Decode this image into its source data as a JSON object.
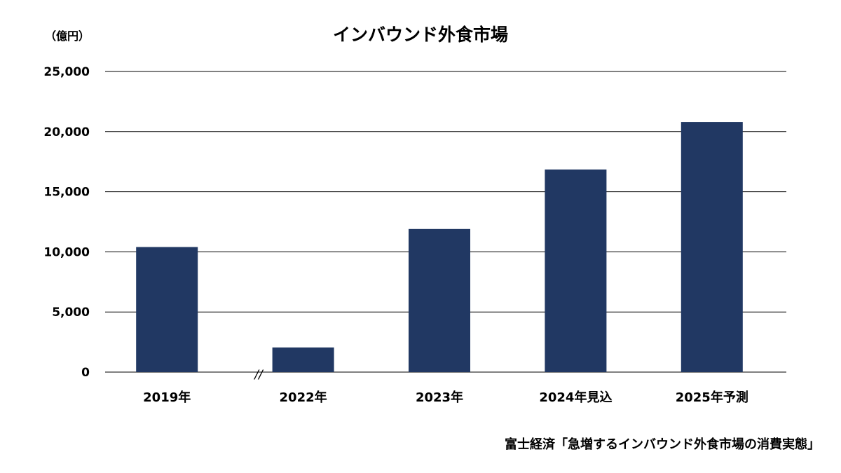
{
  "chart_data": {
    "type": "bar",
    "title": "インバウンド外食市場",
    "unit_label": "（億円）",
    "categories": [
      "2019年",
      "2022年",
      "2023年",
      "2024年見込",
      "2025年予測"
    ],
    "values": [
      10400,
      2050,
      11900,
      16850,
      20800
    ],
    "ylim": [
      0,
      25000
    ],
    "yticks": [
      0,
      5000,
      10000,
      15000,
      20000,
      25000
    ],
    "ytick_labels": [
      "0",
      "5,000",
      "10,000",
      "15,000",
      "20,000",
      "25,000"
    ],
    "xlabel": "",
    "ylabel": "",
    "grid": true,
    "axis_break": "//",
    "bar_color": "#213863",
    "source": "富士経済「急増するインバウンド外食市場の消費実態」"
  }
}
